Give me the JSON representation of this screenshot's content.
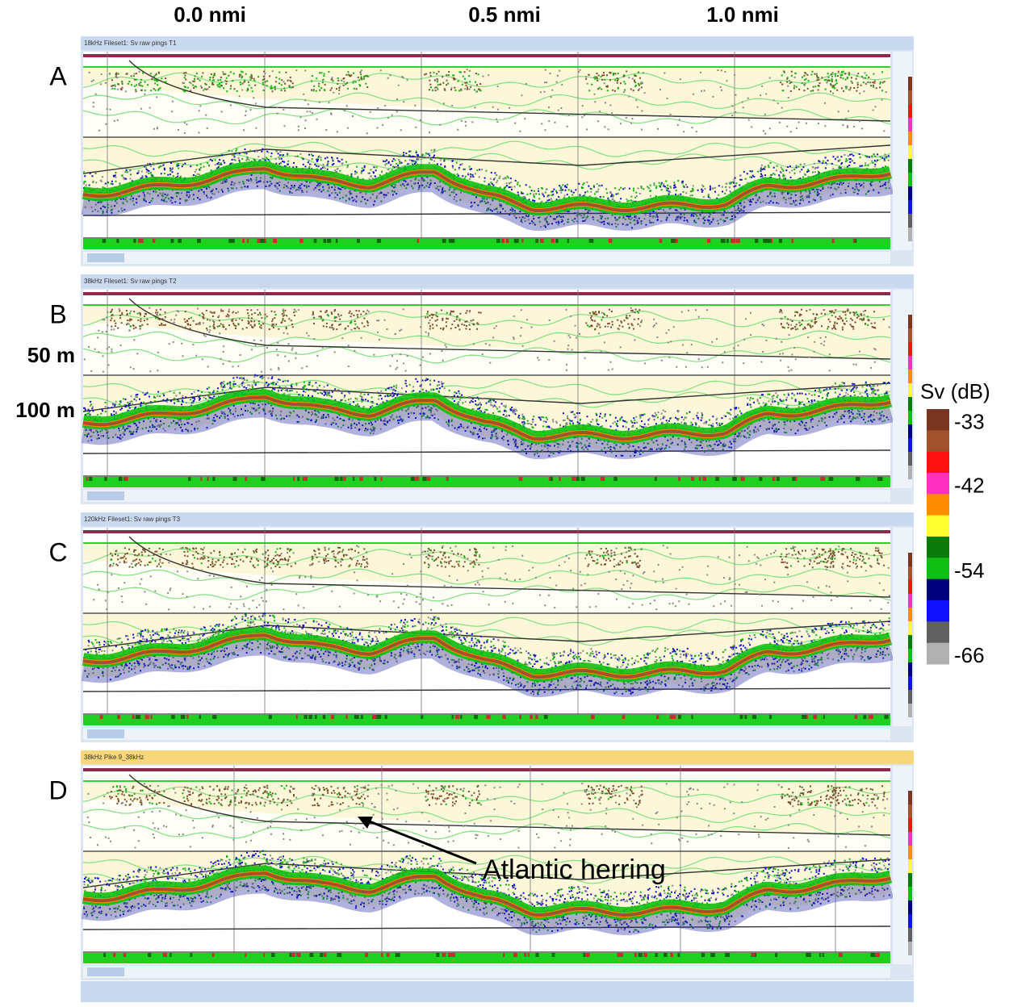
{
  "top_labels": [
    "0.0 nmi",
    "0.5 nmi",
    "1.0 nmi"
  ],
  "panels": [
    {
      "letter": "A",
      "header": "18kHz Fileset1: Sv raw pings T1",
      "header_color": "#c9daf0"
    },
    {
      "letter": "B",
      "header": "38kHz Fileset1: Sv raw pings T2",
      "header_color": "#c9daf0"
    },
    {
      "letter": "C",
      "header": "120kHz Fileset1: Sv raw pings T3",
      "header_color": "#c9daf0"
    },
    {
      "letter": "D",
      "header": "38kHz Pike 9_38kHz",
      "header_color": "#f7d77a"
    }
  ],
  "depth_labels": [
    "50 m",
    "100 m"
  ],
  "colorbar": {
    "title": "Sv (dB)",
    "lim": [
      -31,
      -67
    ],
    "colors": [
      "#7a3520",
      "#a0522d",
      "#ff1010",
      "#ff30c0",
      "#ff8c00",
      "#ffff30",
      "#0a7a0a",
      "#10c010",
      "#00007a",
      "#1010ff",
      "#606060",
      "#b0b0b0"
    ],
    "labels": [
      -33,
      -42,
      -54,
      -66
    ]
  },
  "annotation": "Atlantic herring"
}
